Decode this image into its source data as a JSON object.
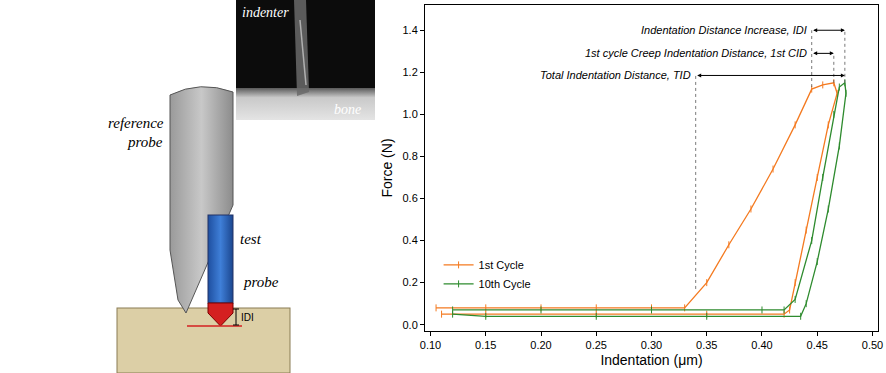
{
  "chart_data": {
    "type": "line",
    "x_label": "Indentation (μm)",
    "y_label": "Force (N)",
    "xlim": [
      0.095,
      0.505
    ],
    "ylim": [
      -0.03,
      1.52
    ],
    "xticks": [
      {
        "value": 0.1,
        "label": "0.10"
      },
      0.15,
      {
        "value": 0.2,
        "label": "0.20"
      },
      0.25,
      {
        "value": 0.3,
        "label": "0.30"
      },
      0.35,
      {
        "value": 0.4,
        "label": "0.40"
      },
      0.45,
      {
        "value": 0.5,
        "label": "0.50"
      }
    ],
    "yticks": [
      {
        "value": 0.0,
        "label": "0.0"
      },
      0.2,
      0.4,
      0.6,
      0.8,
      {
        "value": 1.0,
        "label": "1.0"
      },
      1.2,
      1.4
    ],
    "grid": false,
    "legend": "lower left",
    "series": [
      {
        "name": "1st Cycle",
        "color": "#f47a20",
        "marker": "tick",
        "line_style": "solid",
        "x": [
          0.105,
          0.15,
          0.2,
          0.25,
          0.3,
          0.33,
          0.35,
          0.37,
          0.39,
          0.41,
          0.43,
          0.445,
          0.455,
          0.465,
          0.468,
          0.46,
          0.45,
          0.44,
          0.43,
          0.425,
          0.42,
          0.35,
          0.25,
          0.15,
          0.11
        ],
        "values": [
          0.08,
          0.08,
          0.08,
          0.08,
          0.08,
          0.08,
          0.2,
          0.38,
          0.55,
          0.74,
          0.95,
          1.12,
          1.14,
          1.15,
          1.1,
          0.95,
          0.7,
          0.45,
          0.2,
          0.07,
          0.05,
          0.05,
          0.05,
          0.05,
          0.05
        ]
      },
      {
        "name": "10th Cycle",
        "color": "#2e8b2e",
        "marker": "tick",
        "line_style": "solid",
        "x": [
          0.12,
          0.2,
          0.3,
          0.4,
          0.42,
          0.43,
          0.445,
          0.455,
          0.465,
          0.47,
          0.475,
          0.476,
          0.47,
          0.46,
          0.45,
          0.44,
          0.435,
          0.35,
          0.25,
          0.15,
          0.12
        ],
        "values": [
          0.07,
          0.07,
          0.07,
          0.07,
          0.07,
          0.12,
          0.4,
          0.7,
          1.0,
          1.13,
          1.15,
          1.1,
          0.85,
          0.55,
          0.3,
          0.1,
          0.04,
          0.04,
          0.04,
          0.04,
          0.05
        ]
      }
    ],
    "annotations": [
      {
        "text": "Indentation Distance Increase, IDI",
        "x_start": 0.445,
        "x_end": 0.475,
        "y": 1.4
      },
      {
        "text": "1st cycle Creep Indentation Distance, 1st CID",
        "x_start": 0.445,
        "x_end": 0.465,
        "y": 1.29
      },
      {
        "text": "Total Indentation Distance, TID",
        "x_start": 0.34,
        "x_end": 0.475,
        "y": 1.185
      }
    ],
    "guides": [
      {
        "x": 0.34,
        "y": [
          0.17,
          1.185
        ]
      },
      {
        "x": 0.445,
        "y": [
          1.13,
          1.4
        ]
      },
      {
        "x": 0.465,
        "y": [
          1.15,
          1.29
        ]
      },
      {
        "x": 0.475,
        "y": [
          1.15,
          1.4
        ]
      }
    ]
  },
  "diagram": {
    "reference_probe_label": [
      "reference",
      "probe"
    ],
    "test_probe_label": [
      "test",
      "probe"
    ],
    "depth_label": "IDI",
    "photo": {
      "top_label": "indenter",
      "bottom_label": "bone"
    }
  }
}
